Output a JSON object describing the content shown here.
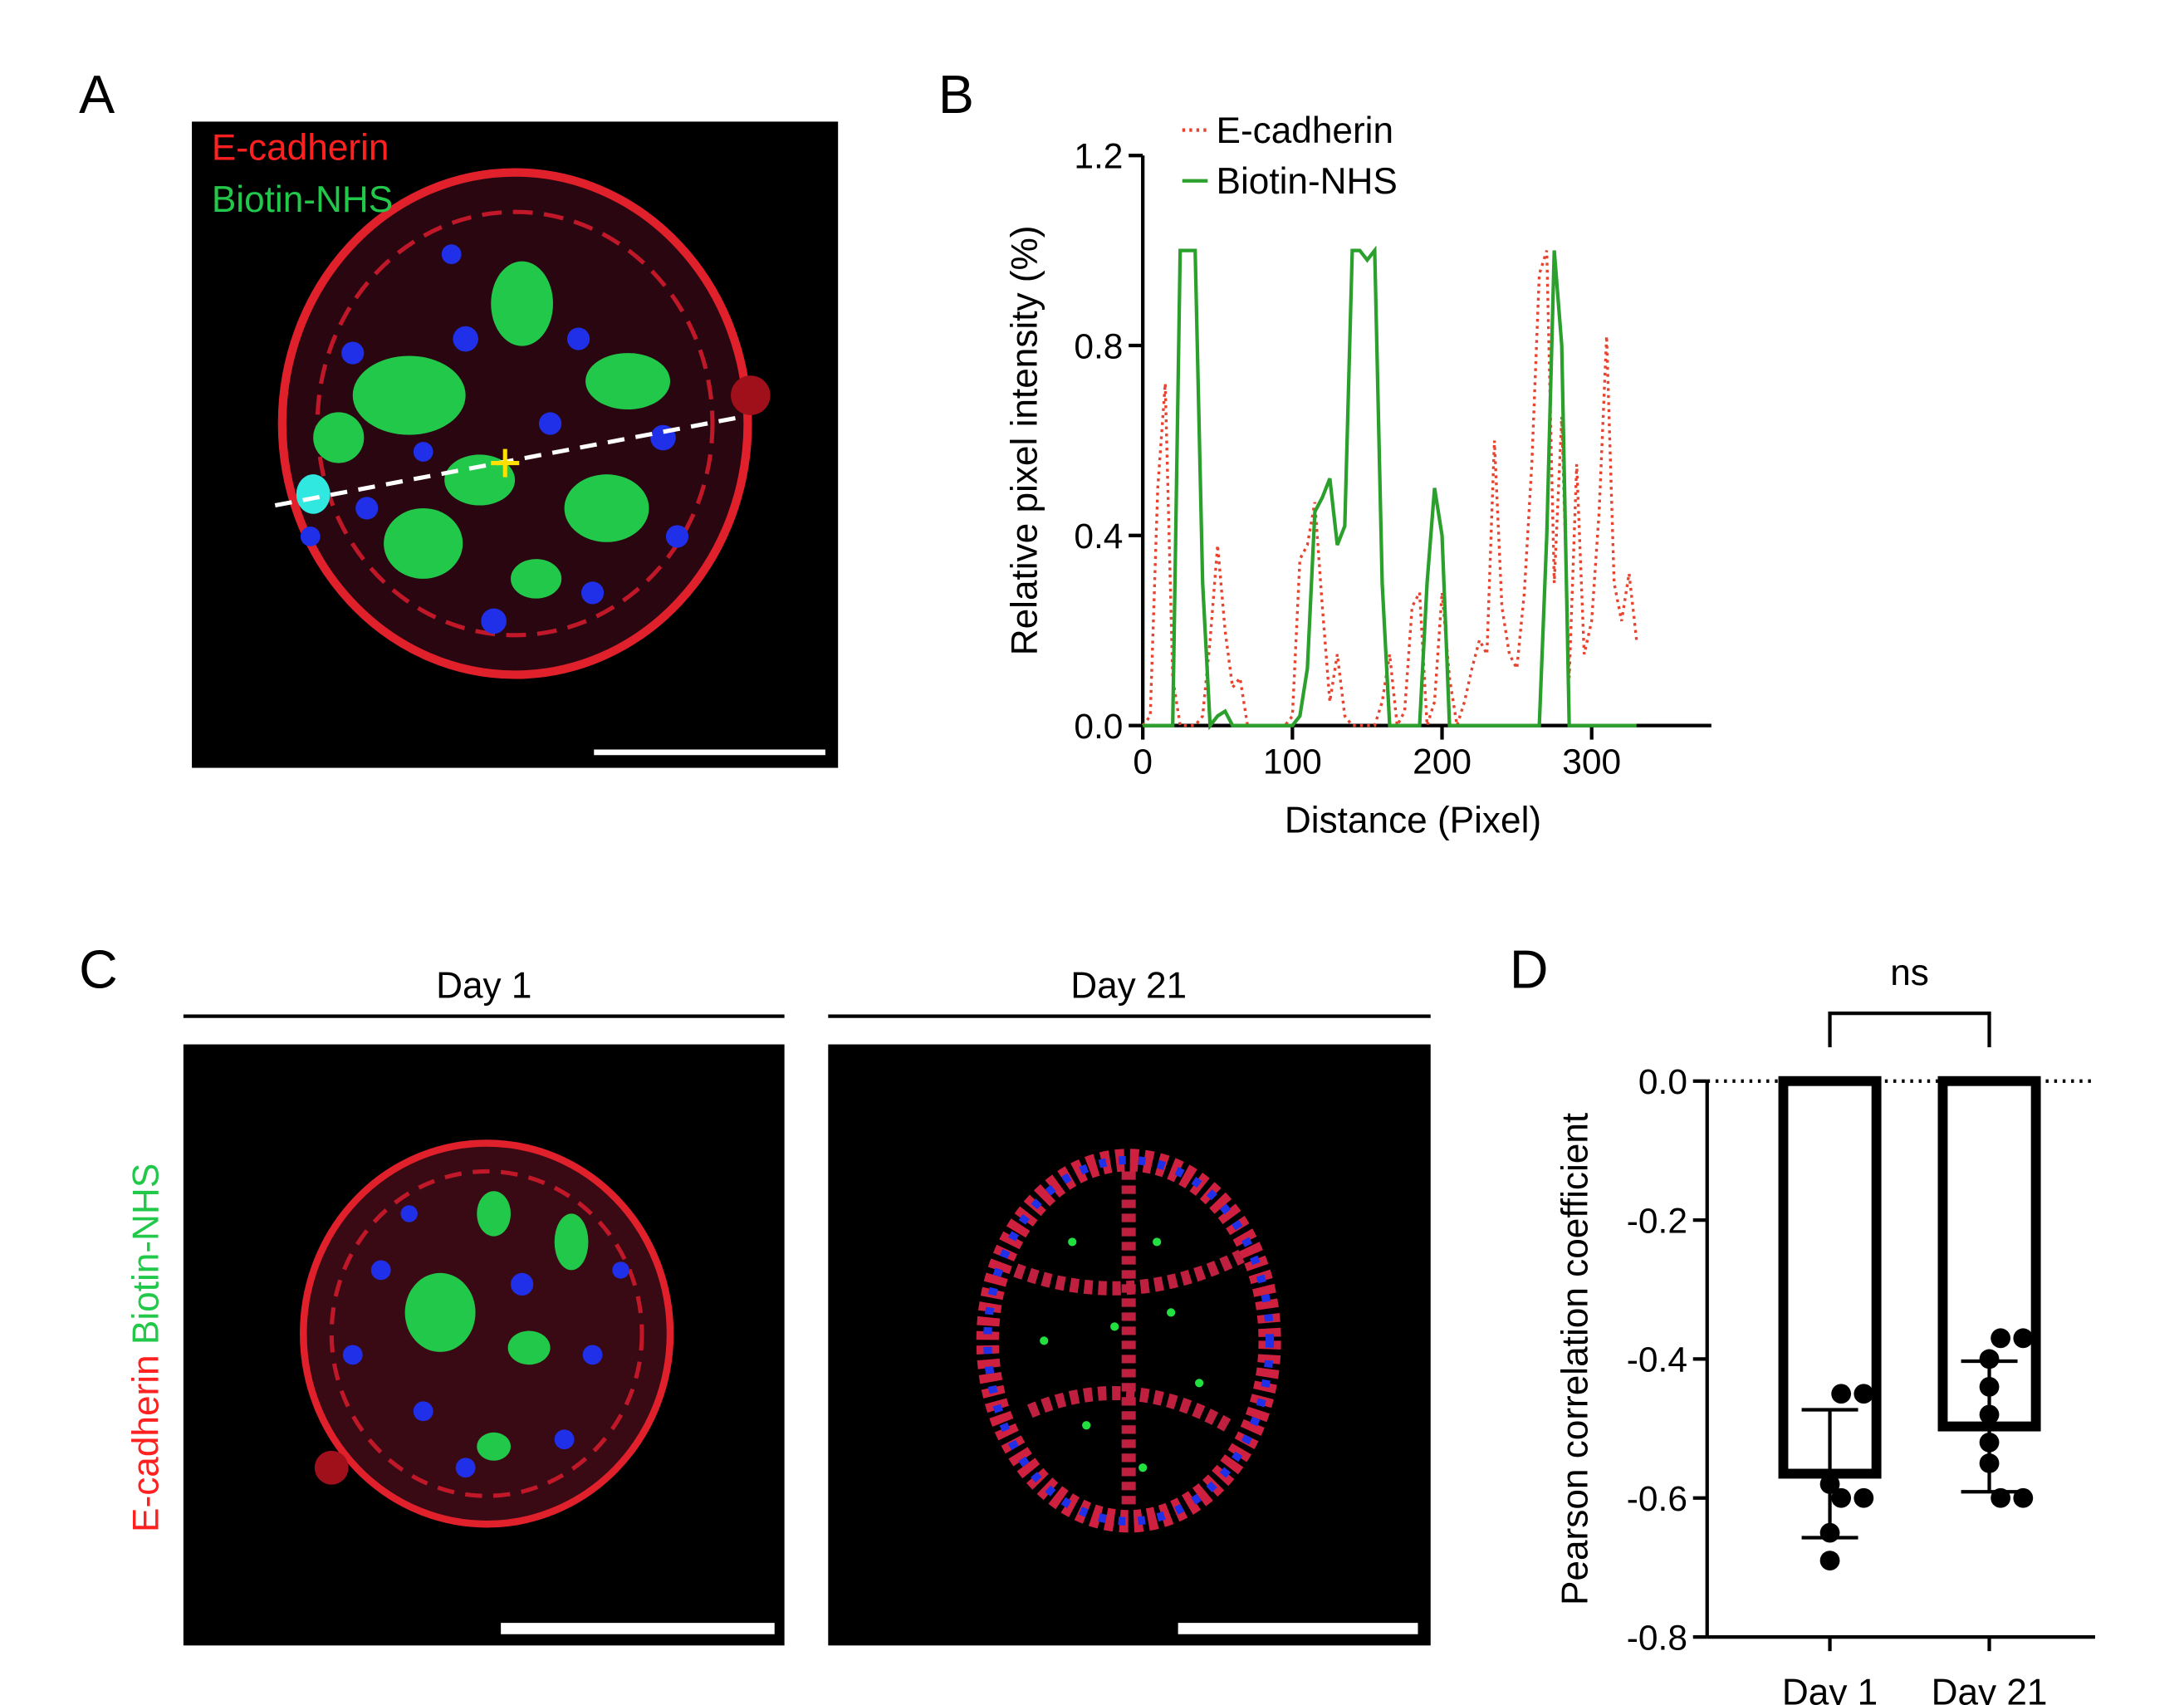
{
  "panel_labels": [
    "A",
    "B",
    "C",
    "D"
  ],
  "image_a": {
    "legend": [
      "E-cadherin",
      "Biotin-NHS"
    ]
  },
  "image_c": {
    "titles": [
      "Day 1",
      "Day 21"
    ],
    "stain_labels": [
      "E-cadherin",
      "Biotin-NHS"
    ]
  },
  "chart_data": [
    {
      "type": "line",
      "xlabel": "Distance (Pixel)",
      "ylabel": "Relative pixel intensity (%)",
      "x": [
        0,
        5,
        10,
        15,
        20,
        25,
        30,
        35,
        40,
        45,
        50,
        55,
        60,
        65,
        70,
        75,
        80,
        85,
        90,
        95,
        100,
        105,
        110,
        115,
        120,
        125,
        130,
        135,
        140,
        145,
        150,
        155,
        160,
        165,
        170,
        175,
        180,
        185,
        190,
        195,
        200,
        205,
        210,
        215,
        220,
        225,
        230,
        235,
        240,
        245,
        250,
        255,
        260,
        265,
        270,
        275,
        280,
        285,
        290,
        295,
        300,
        305,
        310,
        315,
        320,
        325,
        330
      ],
      "series": [
        {
          "name": "E-cadherin",
          "color": "#e8432e",
          "dash": "dotted",
          "values": [
            0,
            0.02,
            0.5,
            0.72,
            0.1,
            0,
            0,
            0,
            0.02,
            0.18,
            0.38,
            0.2,
            0.08,
            0.1,
            0,
            0,
            0,
            0,
            0,
            0,
            0.02,
            0.35,
            0.38,
            0.47,
            0.25,
            0.05,
            0.15,
            0.02,
            0,
            0,
            0,
            0,
            0.05,
            0.15,
            0,
            0.03,
            0.25,
            0.28,
            0,
            0.05,
            0.28,
            0.1,
            0,
            0.05,
            0.12,
            0.18,
            0.15,
            0.6,
            0.25,
            0.15,
            0.12,
            0.28,
            0.55,
            0.95,
            1.0,
            0.3,
            0.65,
            0.1,
            0.55,
            0.15,
            0.22,
            0.45,
            0.82,
            0.3,
            0.22,
            0.32,
            0.18
          ]
        },
        {
          "name": "Biotin-NHS",
          "color": "#2ca02c",
          "dash": "solid",
          "values": [
            0,
            0,
            0,
            0,
            0,
            1,
            1,
            1,
            0.3,
            0,
            0.02,
            0.03,
            0,
            0,
            0,
            0,
            0,
            0,
            0,
            0,
            0,
            0.02,
            0.12,
            0.45,
            0.48,
            0.52,
            0.38,
            0.42,
            1,
            1,
            0.98,
            1,
            0.3,
            0,
            0,
            0,
            0,
            0,
            0.3,
            0.5,
            0.4,
            0,
            0,
            0,
            0,
            0,
            0,
            0,
            0,
            0,
            0,
            0,
            0,
            0,
            0.4,
            1,
            0.8,
            0,
            0,
            0,
            0,
            0,
            0,
            0,
            0,
            0,
            0
          ]
        }
      ],
      "xlim": [
        0,
        380
      ],
      "xticks": [
        0,
        100,
        200,
        300
      ],
      "ylim": [
        0,
        1.2
      ],
      "yticks": [
        {
          "value": 0,
          "label": "0.0"
        },
        0.4,
        0.8,
        1.2
      ]
    },
    {
      "type": "bar",
      "ylabel": "Pearson correlation coefficient",
      "categories": [
        "Day 1",
        "Day 21"
      ],
      "values": [
        -0.565,
        -0.497
      ],
      "errors": [
        0.092,
        0.094
      ],
      "points": [
        [
          -0.45,
          -0.45,
          -0.58,
          -0.6,
          -0.6,
          -0.65,
          -0.69
        ],
        [
          -0.37,
          -0.37,
          -0.4,
          -0.44,
          -0.48,
          -0.52,
          -0.55,
          -0.6,
          -0.6
        ]
      ],
      "annotation": "ns",
      "ylim": [
        -0.8,
        0
      ],
      "yticks": [
        {
          "value": 0,
          "label": "0.0"
        },
        -0.2,
        -0.4,
        -0.6,
        -0.8
      ]
    }
  ]
}
